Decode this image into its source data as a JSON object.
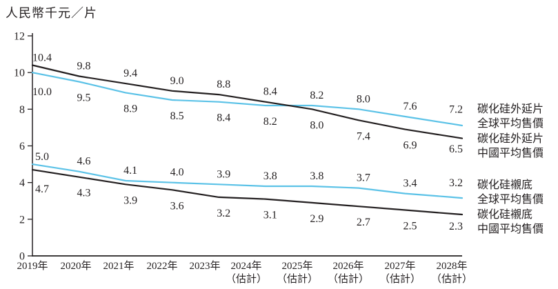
{
  "chart_data": {
    "type": "line",
    "unit_label": "人民幣千元／片",
    "ylim": [
      0,
      12
    ],
    "yticks": [
      0,
      2,
      4,
      6,
      8,
      10,
      12
    ],
    "grid": false,
    "legend_position": "right",
    "categories": [
      "2019年",
      "2020年",
      "2021年",
      "2022年",
      "2023年",
      "2024年",
      "2025年",
      "2026年",
      "2027年",
      "2028年"
    ],
    "category_notes": [
      "",
      "",
      "",
      "",
      "",
      "（估計）",
      "（估計）",
      "（估計）",
      "（估計）",
      "（估計）"
    ],
    "series": [
      {
        "name": "碳化硅外延片全球平均售價",
        "group": "碳化硅外延片",
        "region": "全球平均售價",
        "color": "#5BC2E7",
        "values": [
          10.0,
          9.5,
          8.9,
          8.5,
          8.4,
          8.2,
          8.2,
          8.0,
          7.6,
          7.2
        ]
      },
      {
        "name": "碳化硅外延片中國平均售價",
        "group": "碳化硅外延片",
        "region": "中國平均售價",
        "color": "#231F20",
        "values": [
          10.4,
          9.8,
          9.4,
          9.0,
          8.8,
          8.4,
          8.0,
          7.4,
          6.9,
          6.5
        ]
      },
      {
        "name": "碳化硅襯底全球平均售價",
        "group": "碳化硅襯底",
        "region": "全球平均售價",
        "color": "#5BC2E7",
        "values": [
          5.0,
          4.6,
          4.1,
          4.0,
          3.9,
          3.8,
          3.8,
          3.7,
          3.4,
          3.2
        ]
      },
      {
        "name": "碳化硅襯底中國平均售價",
        "group": "碳化硅襯底",
        "region": "中國平均售價",
        "color": "#231F20",
        "values": [
          4.7,
          4.3,
          3.9,
          3.6,
          3.2,
          3.1,
          2.9,
          2.7,
          2.5,
          2.3
        ]
      }
    ],
    "legend": [
      {
        "lines": [
          "碳化硅外延片",
          "全球平均售價"
        ],
        "color": "#5BC2E7",
        "slug": "legend-epi-global"
      },
      {
        "lines": [
          "碳化硅外延片",
          "中國平均售價"
        ],
        "color": "#231F20",
        "slug": "legend-epi-china"
      },
      {
        "lines": [
          "碳化硅襯底",
          "全球平均售價"
        ],
        "color": "#5BC2E7",
        "slug": "legend-substrate-global"
      },
      {
        "lines": [
          "碳化硅襯底",
          "中國平均售價"
        ],
        "color": "#231F20",
        "slug": "legend-substrate-china"
      }
    ],
    "colors": {
      "global_line": "#5BC2E7",
      "china_line": "#231F20",
      "axis": "#231F20"
    }
  }
}
